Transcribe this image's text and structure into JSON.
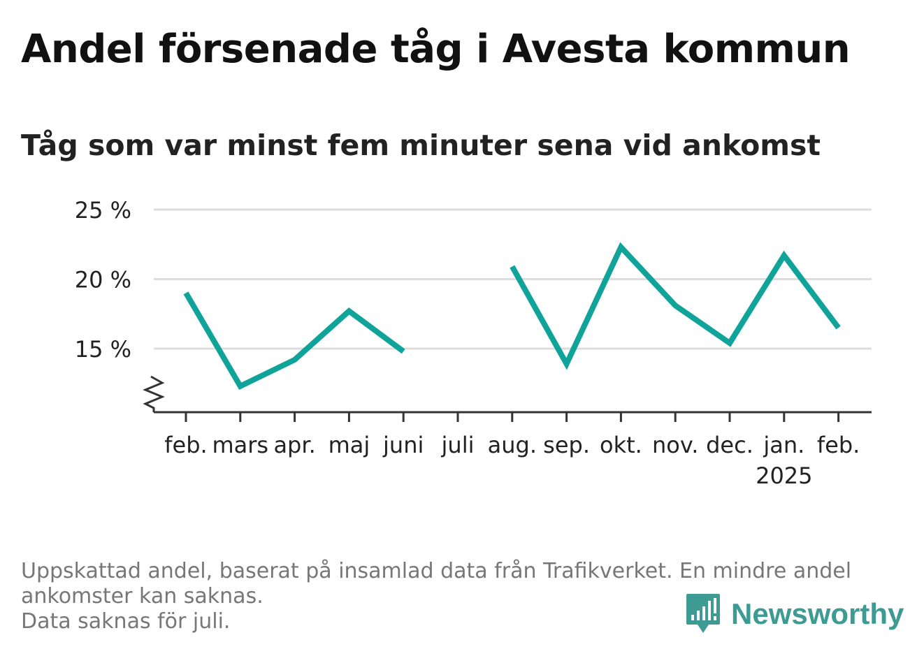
{
  "title": "Andel försenade tåg i Avesta kommun",
  "subtitle": "Tåg som var minst fem minuter sena vid ankomst",
  "footer": {
    "line1": "Uppskattad andel, baserat på insamlad data från Trafikverket. En mindre andel",
    "line2": "ankomster kan saknas.",
    "line3": "Data saknas för juli."
  },
  "logo": {
    "text": "Newsworthy",
    "icon": "newsworthy-logo-icon",
    "color": "#3d9b94"
  },
  "colors": {
    "line": "#10a39a",
    "grid": "#dddddd",
    "axis": "#333333"
  },
  "chart_data": {
    "type": "line",
    "categories": [
      "feb.",
      "mars",
      "apr.",
      "maj",
      "juni",
      "juli",
      "aug.",
      "sep.",
      "okt.",
      "nov.",
      "dec.",
      "jan.",
      "feb."
    ],
    "year_label": {
      "category_index": 11,
      "text": "2025"
    },
    "series": [
      {
        "values": [
          19.0,
          12.3,
          14.2,
          17.7,
          14.8,
          null,
          20.9,
          13.9,
          22.3,
          18.1,
          15.4,
          21.7,
          16.5
        ]
      }
    ],
    "yticks": [
      15,
      20,
      25
    ],
    "ytick_labels": [
      "15 %",
      "20 %",
      "25 %"
    ],
    "ylim": [
      10.5,
      25
    ],
    "axis_break": true,
    "grid": true,
    "xlabel": "",
    "ylabel": ""
  }
}
